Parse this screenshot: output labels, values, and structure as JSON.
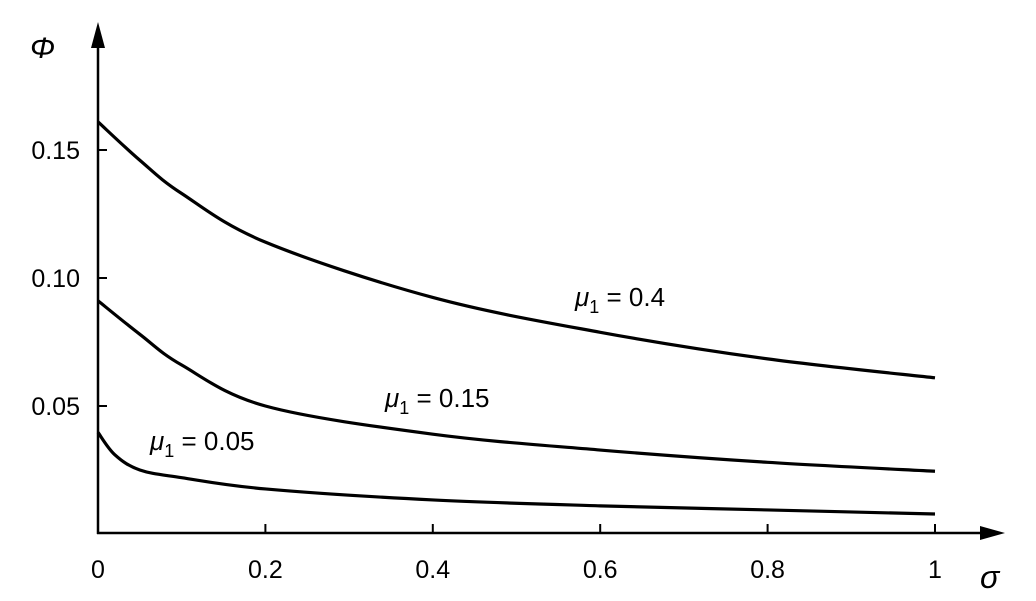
{
  "chart_data": {
    "type": "line",
    "title": "",
    "xlabel": "σ",
    "ylabel": "Φ",
    "xlim": [
      0,
      1
    ],
    "ylim": [
      0,
      0.17
    ],
    "grid": false,
    "x_ticks": [
      0,
      0.2,
      0.4,
      0.6,
      0.8,
      1
    ],
    "x_tick_labels": [
      "0",
      "0.2",
      "0.4",
      "0.6",
      "0.8",
      "1"
    ],
    "y_ticks": [
      0.05,
      0.1,
      0.15
    ],
    "y_tick_labels": [
      "0.05",
      "0.10",
      "0.15"
    ],
    "line_color": "#000000",
    "series": [
      {
        "name": "μ1 = 0.4",
        "label_main": "μ",
        "label_sub": "1",
        "label_rest": " = 0.4",
        "x": [
          0,
          0.05,
          0.1,
          0.2,
          0.4,
          0.6,
          0.8,
          1
        ],
        "y": [
          0.161,
          0.146,
          0.133,
          0.114,
          0.0924,
          0.0788,
          0.0684,
          0.061
        ]
      },
      {
        "name": "μ1 = 0.15",
        "label_main": "μ",
        "label_sub": "1",
        "label_rest": " = 0.15",
        "x": [
          0,
          0.05,
          0.1,
          0.2,
          0.4,
          0.6,
          0.8,
          1
        ],
        "y": [
          0.0911,
          0.078,
          0.066,
          0.05,
          0.039,
          0.0328,
          0.028,
          0.0245
        ]
      },
      {
        "name": "μ1 = 0.05",
        "label_main": "μ",
        "label_sub": "1",
        "label_rest": " = 0.05",
        "x": [
          0,
          0.02,
          0.05,
          0.1,
          0.2,
          0.4,
          0.6,
          0.8,
          1
        ],
        "y": [
          0.0397,
          0.031,
          0.025,
          0.022,
          0.0176,
          0.0133,
          0.011,
          0.0094,
          0.0078
        ]
      }
    ]
  }
}
